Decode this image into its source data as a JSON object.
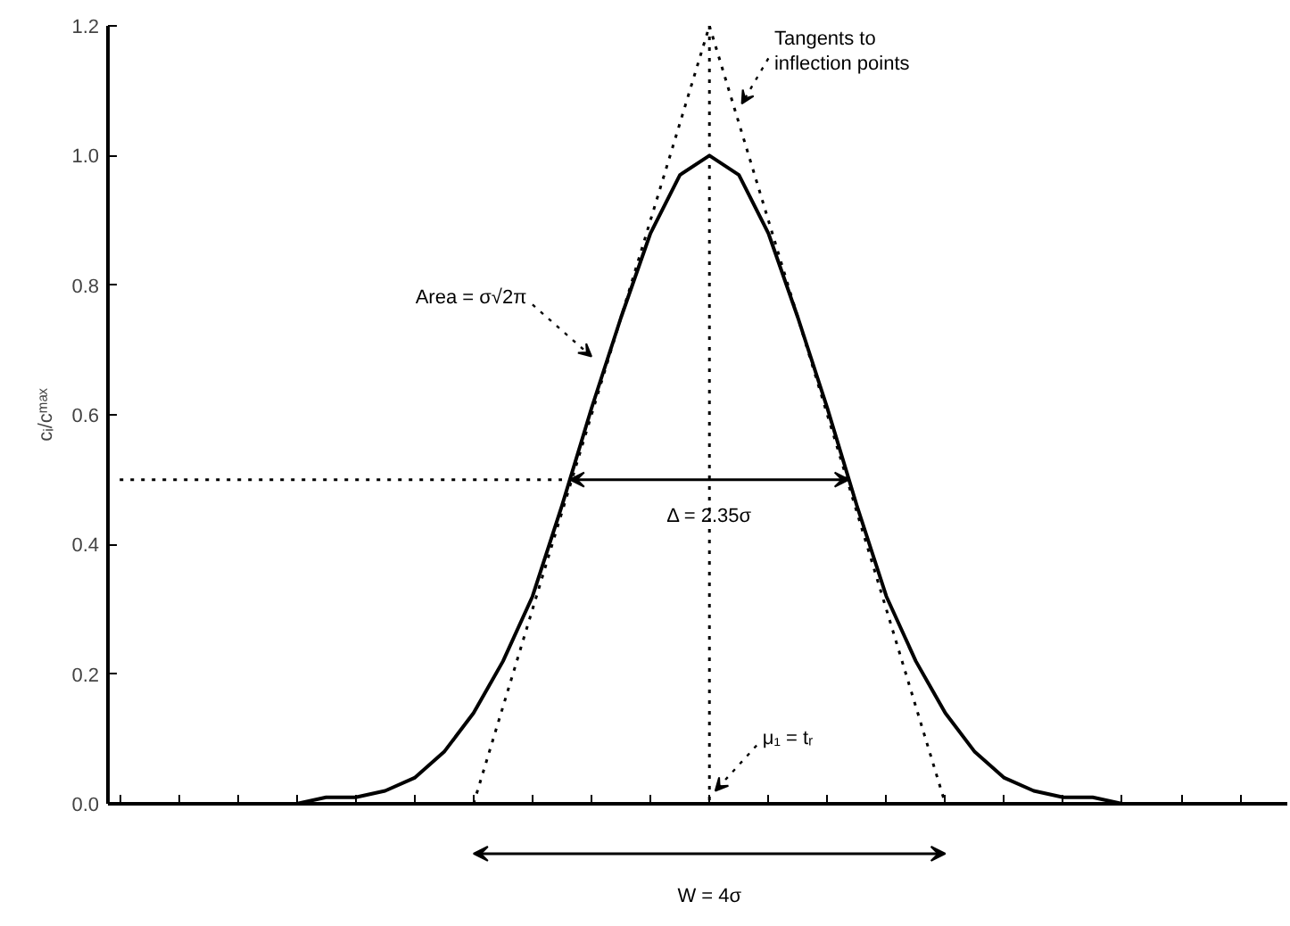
{
  "chart_data": {
    "type": "line",
    "ylabel": "cᵢ/cᵐᵃˣ",
    "categories": [
      null,
      null,
      null,
      null,
      null,
      null,
      null,
      null,
      null,
      null,
      null,
      null,
      null,
      null,
      null,
      null,
      null,
      null,
      null,
      null,
      null,
      null,
      null,
      null,
      null,
      null,
      null,
      null,
      null,
      null,
      null,
      null,
      null,
      null,
      null,
      null,
      null,
      null,
      null,
      null
    ],
    "ylim": [
      0,
      1.2
    ],
    "yticks": [
      {
        "value": 0,
        "label": "0.0"
      },
      {
        "value": 0.2,
        "label": "0.2"
      },
      {
        "value": 0.4,
        "label": "0.4"
      },
      {
        "value": 0.6,
        "label": "0.6"
      },
      {
        "value": 0.8,
        "label": "0.8"
      },
      {
        "value": 1,
        "label": "1.0"
      },
      {
        "value": 1.2,
        "label": "1.2"
      }
    ],
    "tick_labels": "y",
    "grid": false,
    "series": [
      {
        "color": "#000000",
        "line_style": "solid",
        "values": [
          null,
          null,
          null,
          null,
          null,
          null,
          0.0,
          0.01,
          0.01,
          0.02,
          0.04,
          0.08,
          0.14,
          0.22,
          0.32,
          0.46,
          0.61,
          0.75,
          0.88,
          0.97,
          1.0,
          0.97,
          0.88,
          0.75,
          0.61,
          0.46,
          0.32,
          0.22,
          0.14,
          0.08,
          0.04,
          0.02,
          0.01,
          0.01,
          0.0,
          null,
          null,
          null,
          null,
          null
        ]
      },
      {
        "color": "#000000",
        "line_style": "dotted",
        "values": [
          null,
          null,
          null,
          null,
          null,
          null,
          null,
          null,
          null,
          null,
          null,
          null,
          0,
          0.15,
          0.3,
          0.45,
          0.6,
          0.75,
          0.9,
          1.05,
          1.2,
          null,
          null,
          null,
          null,
          null,
          null,
          null,
          null,
          null,
          null,
          null,
          null,
          null,
          null,
          null,
          null,
          null,
          null,
          null
        ]
      },
      {
        "color": "#000000",
        "line_style": "dotted",
        "values": [
          null,
          null,
          null,
          null,
          null,
          null,
          null,
          null,
          null,
          null,
          null,
          null,
          null,
          null,
          null,
          null,
          null,
          null,
          null,
          null,
          1.2,
          1.05,
          0.9,
          0.75,
          0.6,
          0.45,
          0.3,
          0.15,
          0,
          null,
          null,
          null,
          null,
          null,
          null,
          null,
          null,
          null,
          null,
          null
        ]
      },
      {
        "color": "#000000",
        "line_style": "dotted",
        "values": [
          0.5,
          0.5,
          0.5,
          0.5,
          0.5,
          0.5,
          0.5,
          0.5,
          0.5,
          0.5,
          0.5,
          0.5,
          0.5,
          0.5,
          0.5,
          0.5,
          null,
          null,
          null,
          null,
          null,
          null,
          null,
          null,
          null,
          null,
          null,
          null,
          null,
          null,
          null,
          null,
          null,
          null,
          null,
          null,
          null,
          null,
          null,
          null
        ]
      }
    ],
    "annotations": [
      "Tangents to\ninflection points",
      "Area = σ√2π",
      "μ₁ = tᵣ",
      "Δ = 2.35σ",
      "W = 4σ"
    ]
  }
}
